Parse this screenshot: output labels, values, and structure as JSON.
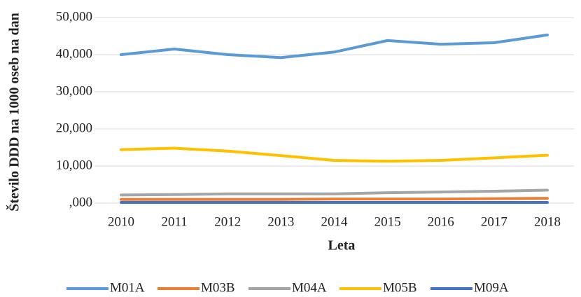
{
  "chart_data": {
    "type": "line",
    "x_label": "Leta",
    "y_label": "Število DDD na 1000 oseb na dan",
    "categories": [
      "2010",
      "2011",
      "2012",
      "2013",
      "2014",
      "2015",
      "2016",
      "2017",
      "2018"
    ],
    "series": [
      {
        "name": "M01A",
        "color": "#5b9bd5",
        "values": [
          40000,
          41500,
          40000,
          39200,
          40700,
          43800,
          42800,
          43200,
          45300
        ]
      },
      {
        "name": "M03B",
        "color": "#ed7d31",
        "values": [
          1000,
          1000,
          1000,
          1000,
          1100,
          1100,
          1100,
          1200,
          1300
        ]
      },
      {
        "name": "M04A",
        "color": "#a5a5a5",
        "values": [
          2200,
          2300,
          2500,
          2500,
          2500,
          2800,
          3000,
          3200,
          3500
        ]
      },
      {
        "name": "M05B",
        "color": "#ffc000",
        "values": [
          14400,
          14800,
          14000,
          12800,
          11500,
          11300,
          11500,
          12200,
          12900
        ]
      },
      {
        "name": "M09A",
        "color": "#4472c4",
        "values": [
          200,
          200,
          200,
          200,
          200,
          200,
          200,
          200,
          200
        ]
      }
    ],
    "ylim": [
      0,
      50000
    ],
    "yticks": [
      {
        "value": 0,
        "label": ",000"
      },
      {
        "value": 10000,
        "label": "10,000"
      },
      {
        "value": 20000,
        "label": "20,000"
      },
      {
        "value": 30000,
        "label": "30,000"
      },
      {
        "value": 40000,
        "label": "40,000"
      },
      {
        "value": 50000,
        "label": "50,000"
      }
    ],
    "grid": true,
    "legend": "bottom"
  }
}
